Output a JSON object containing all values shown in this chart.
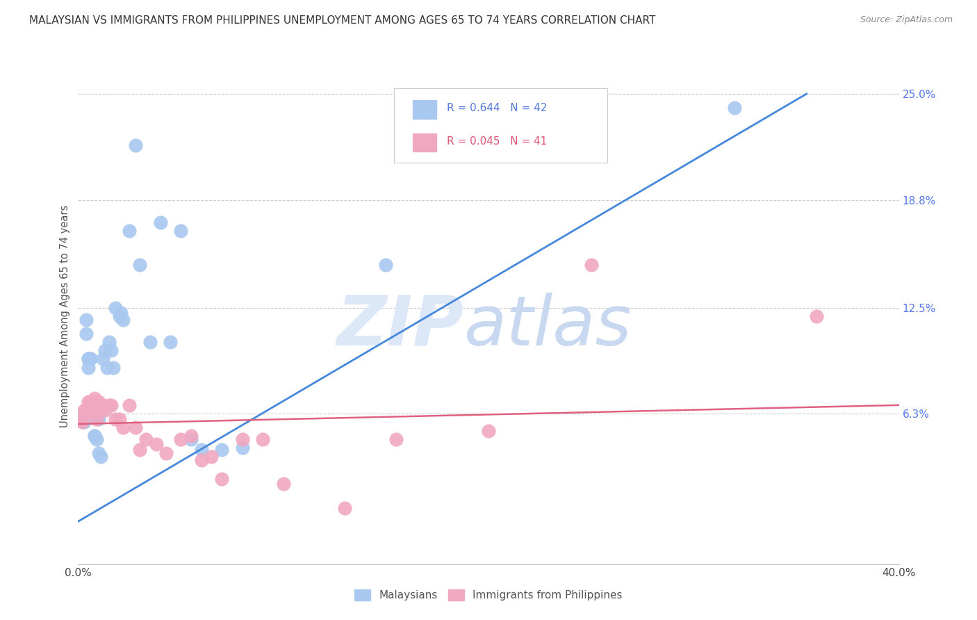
{
  "title": "MALAYSIAN VS IMMIGRANTS FROM PHILIPPINES UNEMPLOYMENT AMONG AGES 65 TO 74 YEARS CORRELATION CHART",
  "source": "Source: ZipAtlas.com",
  "ylabel": "Unemployment Among Ages 65 to 74 years",
  "ytick_labels": [
    "25.0%",
    "18.8%",
    "12.5%",
    "6.3%"
  ],
  "ytick_values": [
    0.25,
    0.188,
    0.125,
    0.063
  ],
  "legend_label1": "Malaysians",
  "legend_label2": "Immigrants from Philippines",
  "r1": "0.644",
  "n1": "42",
  "r2": "0.045",
  "n2": "41",
  "blue_color": "#a8c8f0",
  "pink_color": "#f0a8c0",
  "line_blue": "#4488dd",
  "line_pink": "#e06080",
  "watermark_zip": "ZIP",
  "watermark_atlas": "atlas",
  "watermark_color_zip": "#c8d8f0",
  "watermark_color_atlas": "#c8d8f0",
  "background_color": "#ffffff",
  "xlim": [
    0.0,
    0.4
  ],
  "ylim": [
    -0.025,
    0.265
  ],
  "blue_line_x": [
    0.0,
    0.355
  ],
  "blue_line_y": [
    0.0,
    0.25
  ],
  "pink_line_x": [
    0.0,
    0.4
  ],
  "pink_line_y": [
    0.057,
    0.068
  ],
  "blue_scatter_x": [
    0.001,
    0.002,
    0.003,
    0.003,
    0.004,
    0.004,
    0.005,
    0.005,
    0.005,
    0.006,
    0.006,
    0.007,
    0.007,
    0.008,
    0.008,
    0.009,
    0.01,
    0.01,
    0.011,
    0.012,
    0.013,
    0.014,
    0.015,
    0.016,
    0.017,
    0.018,
    0.02,
    0.021,
    0.022,
    0.025,
    0.028,
    0.03,
    0.035,
    0.04,
    0.045,
    0.05,
    0.055,
    0.06,
    0.07,
    0.08,
    0.15,
    0.32
  ],
  "blue_scatter_y": [
    0.06,
    0.06,
    0.058,
    0.063,
    0.11,
    0.118,
    0.09,
    0.095,
    0.095,
    0.095,
    0.095,
    0.065,
    0.065,
    0.05,
    0.05,
    0.048,
    0.06,
    0.04,
    0.038,
    0.095,
    0.1,
    0.09,
    0.105,
    0.1,
    0.09,
    0.125,
    0.12,
    0.122,
    0.118,
    0.17,
    0.22,
    0.15,
    0.105,
    0.175,
    0.105,
    0.17,
    0.048,
    0.042,
    0.042,
    0.043,
    0.15,
    0.242
  ],
  "pink_scatter_x": [
    0.001,
    0.002,
    0.003,
    0.004,
    0.005,
    0.005,
    0.006,
    0.006,
    0.007,
    0.008,
    0.008,
    0.009,
    0.01,
    0.01,
    0.011,
    0.012,
    0.013,
    0.015,
    0.016,
    0.018,
    0.02,
    0.022,
    0.025,
    0.028,
    0.03,
    0.033,
    0.038,
    0.043,
    0.05,
    0.055,
    0.06,
    0.065,
    0.07,
    0.08,
    0.09,
    0.1,
    0.13,
    0.155,
    0.2,
    0.25,
    0.36
  ],
  "pink_scatter_y": [
    0.06,
    0.058,
    0.065,
    0.063,
    0.065,
    0.07,
    0.065,
    0.07,
    0.065,
    0.068,
    0.072,
    0.06,
    0.065,
    0.07,
    0.065,
    0.068,
    0.065,
    0.068,
    0.068,
    0.06,
    0.06,
    0.055,
    0.068,
    0.055,
    0.042,
    0.048,
    0.045,
    0.04,
    0.048,
    0.05,
    0.036,
    0.038,
    0.025,
    0.048,
    0.048,
    0.022,
    0.008,
    0.048,
    0.053,
    0.15,
    0.12
  ]
}
